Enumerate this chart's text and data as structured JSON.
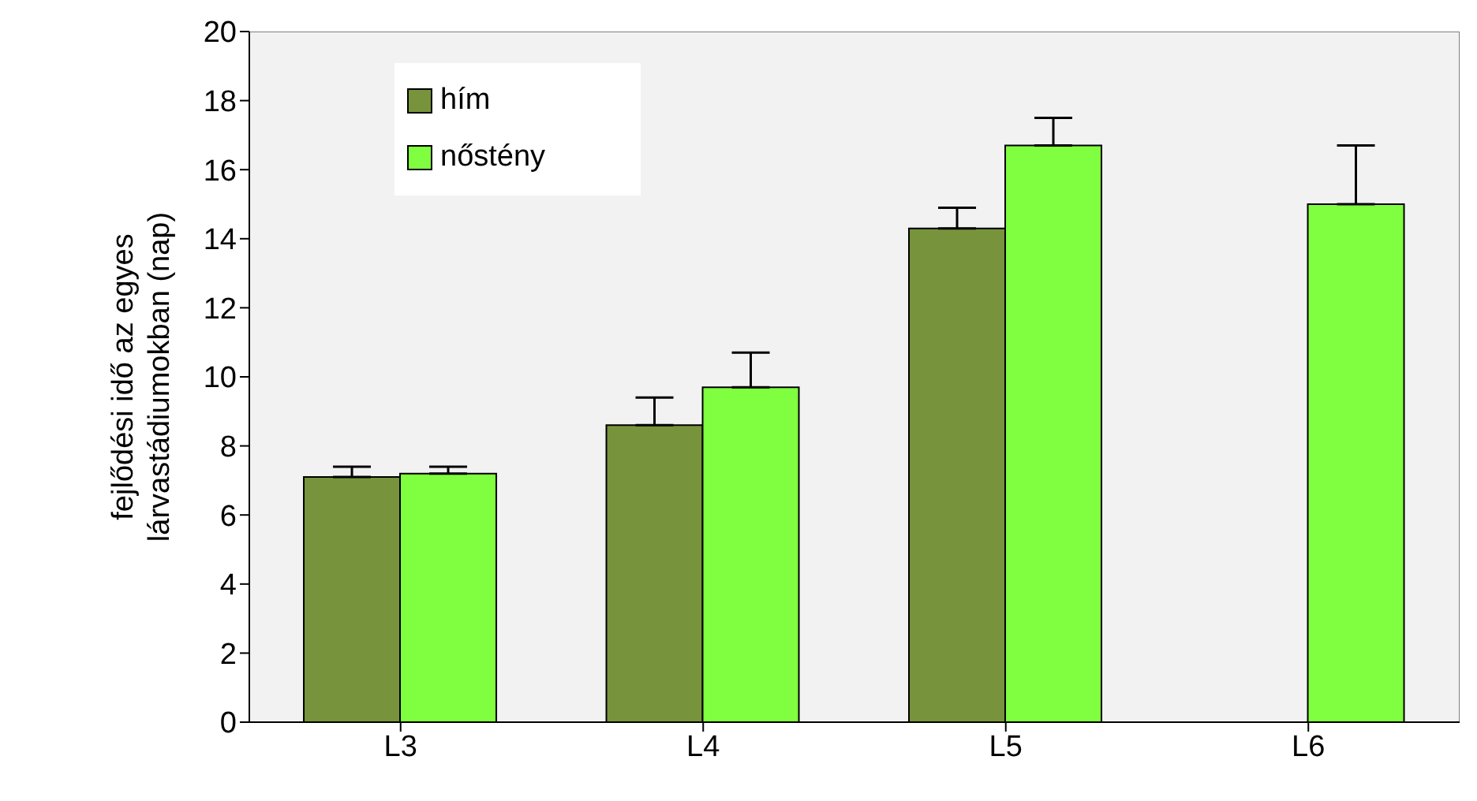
{
  "chart_data": {
    "type": "bar",
    "ylabel": "fejlődési idő az egyes\nlárvastádiumokban (nap)",
    "categories": [
      "L3",
      "L4",
      "L5",
      "L6"
    ],
    "series": [
      {
        "name": "hím",
        "color": "#77933c",
        "values": [
          7.1,
          8.6,
          14.3,
          null
        ],
        "errors": [
          [
            7.1,
            7.4
          ],
          [
            8.6,
            9.4
          ],
          [
            14.3,
            14.9
          ],
          null
        ]
      },
      {
        "name": "nőstény",
        "color": "#80ff40",
        "values": [
          7.2,
          9.7,
          16.7,
          15.0
        ],
        "errors": [
          [
            7.2,
            7.4
          ],
          [
            9.7,
            10.7
          ],
          [
            16.7,
            17.5
          ],
          [
            15.0,
            16.7
          ]
        ]
      }
    ],
    "ylim": [
      0,
      20
    ],
    "yticks": [
      0,
      2,
      4,
      6,
      8,
      10,
      12,
      14,
      16,
      18,
      20
    ],
    "legend": "top left"
  }
}
